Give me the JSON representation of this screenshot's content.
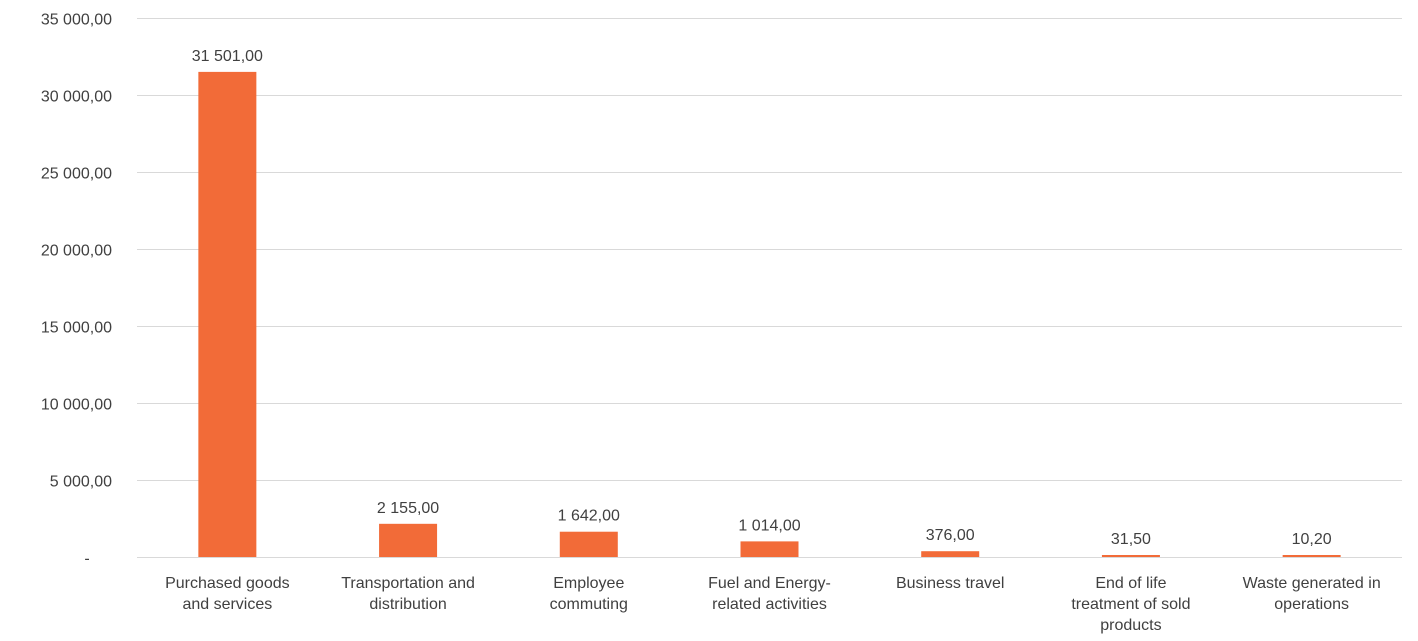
{
  "chart_data": {
    "type": "bar",
    "categories": [
      [
        "Purchased goods",
        "and services"
      ],
      [
        "Transportation and",
        "distribution"
      ],
      [
        "Employee",
        "commuting"
      ],
      [
        "Fuel and Energy-",
        "related activities"
      ],
      [
        "Business travel"
      ],
      [
        "End of life",
        "treatment of sold",
        "products"
      ],
      [
        "Waste generated in",
        "operations"
      ]
    ],
    "values": [
      31501.0,
      2155.0,
      1642.0,
      1014.0,
      376.0,
      31.5,
      10.2
    ],
    "data_labels": [
      "31 501,00",
      "2 155,00",
      "1 642,00",
      "1 014,00",
      "376,00",
      "31,50",
      "10,20"
    ],
    "y_ticks": [
      0,
      5000,
      10000,
      15000,
      20000,
      25000,
      30000,
      35000
    ],
    "y_tick_labels": [
      "-",
      "5 000,00",
      "10 000,00",
      "15 000,00",
      "20 000,00",
      "25 000,00",
      "30 000,00",
      "35 000,00"
    ],
    "ylim": [
      0,
      35000
    ],
    "grid": true,
    "bar_color": "#f26b38",
    "grid_color": "#d9d9d9",
    "text_color": "#404040"
  }
}
